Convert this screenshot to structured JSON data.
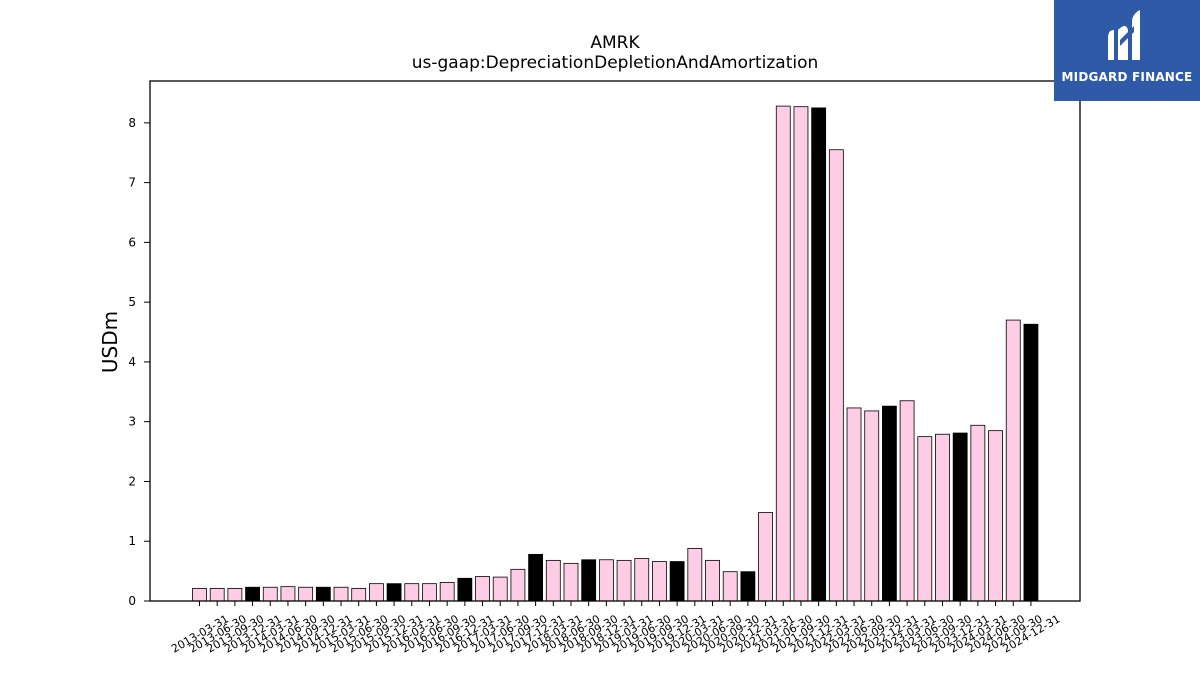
{
  "chart_data": {
    "type": "bar",
    "title": "AMRK",
    "subtitle": "us-gaap:DepreciationDepletionAndAmortization",
    "xlabel": "",
    "ylabel": "USDm",
    "ylim": [
      0,
      8.7
    ],
    "yticks": [
      "0",
      "1",
      "2",
      "3",
      "4",
      "5",
      "6",
      "7",
      "8"
    ],
    "grid": false,
    "colors": {
      "quarter": "#ffcce6",
      "fiscal_year_end": "#000000",
      "edge": "#000000"
    },
    "categories": [
      "2013-03-31",
      "2013-06-30",
      "2013-09-30",
      "2013-12-31",
      "2014-03-31",
      "2014-06-30",
      "2014-09-30",
      "2014-12-31",
      "2015-03-31",
      "2015-06-30",
      "2015-09-30",
      "2015-12-31",
      "2016-03-31",
      "2016-06-30",
      "2016-09-30",
      "2016-12-31",
      "2017-03-31",
      "2017-06-30",
      "2017-09-30",
      "2017-12-31",
      "2018-03-31",
      "2018-06-30",
      "2018-09-30",
      "2018-12-31",
      "2019-03-31",
      "2019-06-30",
      "2019-09-30",
      "2019-12-31",
      "2020-03-31",
      "2020-06-30",
      "2020-09-30",
      "2020-12-31",
      "2021-03-31",
      "2021-06-30",
      "2021-09-30",
      "2021-12-31",
      "2022-03-31",
      "2022-06-30",
      "2022-09-30",
      "2022-12-31",
      "2023-03-31",
      "2023-06-30",
      "2023-09-30",
      "2023-12-31",
      "2024-03-31",
      "2024-06-30",
      "2024-09-30",
      "2024-12-31"
    ],
    "values": [
      0.21,
      0.21,
      0.21,
      0.23,
      0.23,
      0.24,
      0.23,
      0.23,
      0.23,
      0.21,
      0.29,
      0.29,
      0.29,
      0.29,
      0.31,
      0.38,
      0.41,
      0.4,
      0.53,
      0.78,
      0.68,
      0.63,
      0.69,
      0.69,
      0.68,
      0.71,
      0.66,
      0.66,
      0.88,
      0.68,
      0.49,
      0.49,
      1.48,
      8.28,
      8.27,
      8.25,
      7.55,
      3.23,
      3.18,
      3.26,
      3.35,
      2.75,
      2.79,
      2.81,
      2.94,
      2.85,
      4.7,
      4.63
    ],
    "highlight": [
      false,
      false,
      false,
      true,
      false,
      false,
      false,
      true,
      false,
      false,
      false,
      true,
      false,
      false,
      false,
      true,
      false,
      false,
      false,
      true,
      false,
      false,
      true,
      false,
      false,
      false,
      false,
      true,
      false,
      false,
      false,
      true,
      false,
      false,
      false,
      true,
      false,
      false,
      false,
      true,
      false,
      false,
      false,
      true,
      false,
      false,
      false,
      true
    ]
  },
  "logo": {
    "brand_name": "MIDGARD FINANCE",
    "icon": "midgard-logo-icon"
  }
}
